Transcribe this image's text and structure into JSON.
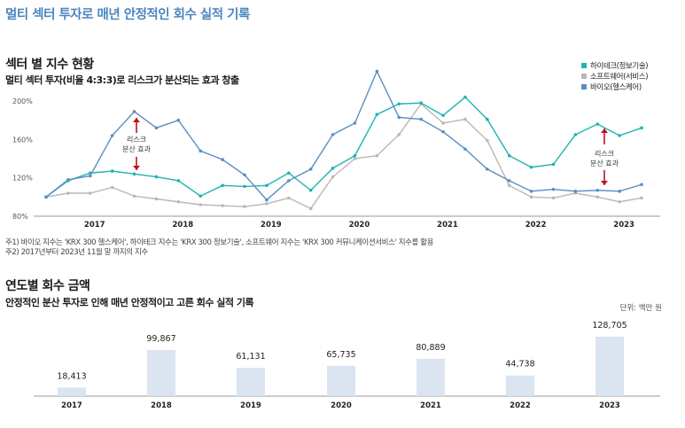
{
  "page_title": "멀티 섹터 투자로 매년 안정적인 회수 실적 기록",
  "section1": {
    "title": "섹터 별 지수 현황",
    "subtitle": "멀티 섹터 투자(비율 4:3:3)로 리스크가 분산되는 효과 창출"
  },
  "annotations": {
    "a1_line1": "리스크",
    "a1_line2": "분산 효과",
    "a2_line1": "리스크",
    "a2_line2": "분산 효과"
  },
  "notes": {
    "n1": "주1) 바이오 지수는 'KRX 300 헬스케어',  하이테크 지수는 'KRX 300 정보기술', 소프트웨어 지수는 'KRX 300 커뮤니케이션서비스' 지수를 활용",
    "n2": "주2) 2017년부터 2023년 11월 말 까지의 지수"
  },
  "section2": {
    "title": "연도별 회수 금액",
    "subtitle": "안정적인 분산 투자로 인해 매년 안정적이고 고른 회수 실적 기록",
    "unit": "단위: 백만 원"
  },
  "colors": {
    "hitech": "#1fb3b3",
    "software": "#b8b8b8",
    "bio": "#5b8fc0",
    "bar": "#dae5f1",
    "arrow": "#c0121b"
  },
  "chart_data": [
    {
      "type": "line",
      "title": "",
      "ylabel": "",
      "yticks": [
        "80%",
        "120%",
        "160%",
        "200%"
      ],
      "ylim": [
        80,
        200
      ],
      "xticks": [
        "2017",
        "2018",
        "2019",
        "2020",
        "2021",
        "2022",
        "2023"
      ],
      "xlim": [
        2016.7,
        2023.55
      ],
      "grid": false,
      "legend_position": "top-right",
      "x": [
        2016.7,
        2016.95,
        2017.2,
        2017.45,
        2017.7,
        2017.95,
        2018.2,
        2018.45,
        2018.7,
        2018.95,
        2019.2,
        2019.45,
        2019.7,
        2019.95,
        2020.2,
        2020.45,
        2020.7,
        2020.95,
        2021.2,
        2021.45,
        2021.7,
        2021.95,
        2022.2,
        2022.45,
        2022.7,
        2022.95,
        2023.2,
        2023.45
      ],
      "series": [
        {
          "name": "하이테크(정보기술)",
          "values": [
            100,
            117,
            125,
            127,
            124,
            121,
            117,
            101,
            112,
            111,
            112,
            125,
            107,
            130,
            143,
            186,
            197,
            198,
            185,
            204,
            181,
            143,
            131,
            134,
            165,
            176,
            164,
            172
          ]
        },
        {
          "name": "소프트웨어(서비스)",
          "values": [
            100,
            104,
            104,
            110,
            101,
            98,
            95,
            92,
            91,
            90,
            93,
            99,
            88,
            121,
            140,
            143,
            165,
            197,
            177,
            181,
            159,
            112,
            100,
            99,
            104,
            100,
            95,
            99
          ]
        },
        {
          "name": "바이오(헬스케어)",
          "values": [
            100,
            118,
            122,
            164,
            189,
            172,
            180,
            148,
            139,
            123,
            97,
            117,
            129,
            165,
            177,
            231,
            183,
            181,
            168,
            150,
            129,
            117,
            106,
            108,
            106,
            107,
            106,
            113
          ]
        }
      ]
    },
    {
      "type": "bar",
      "title": "",
      "categories": [
        "2017",
        "2018",
        "2019",
        "2020",
        "2021",
        "2022",
        "2023"
      ],
      "values": [
        18413,
        99867,
        61131,
        65735,
        80889,
        44738,
        128705
      ],
      "labels": [
        "18,413",
        "99,867",
        "61,131",
        "65,735",
        "80,889",
        "44,738",
        "128,705"
      ],
      "ylim": [
        0,
        128705
      ],
      "grid": false
    }
  ]
}
